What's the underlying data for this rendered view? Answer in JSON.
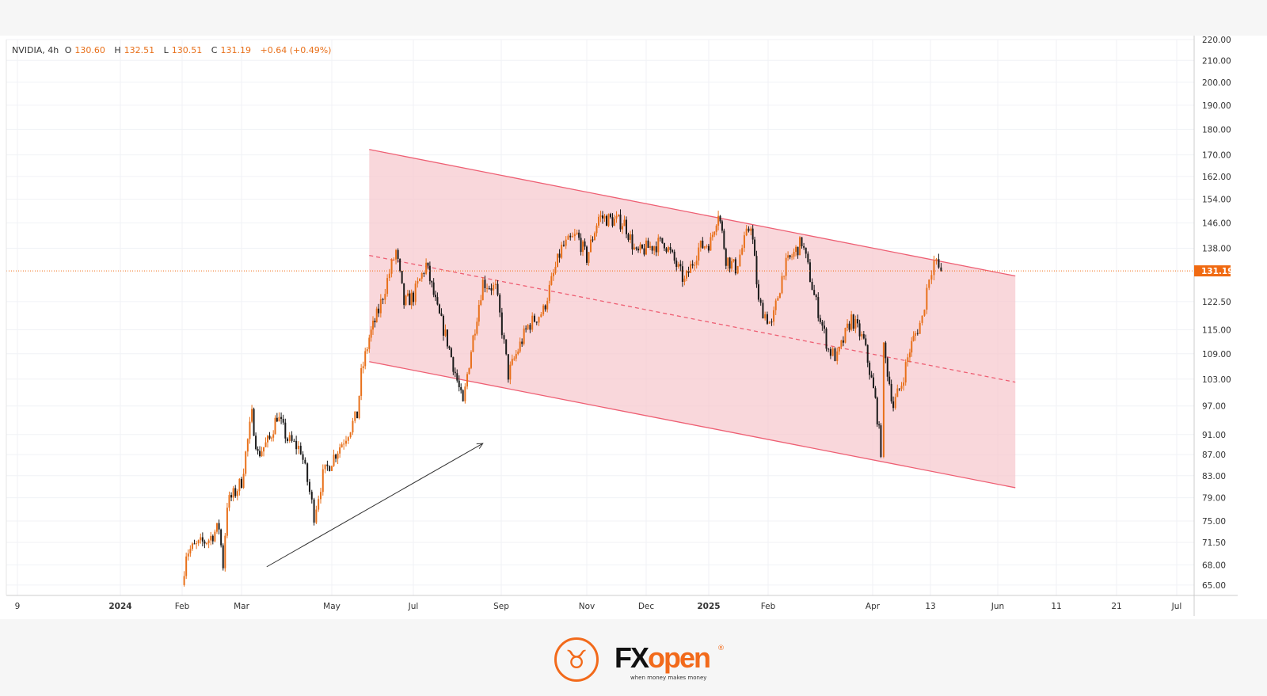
{
  "legend": {
    "symbol": "NVIDIA, 4h",
    "open_label": "O",
    "open": "130.60",
    "high_label": "H",
    "high": "132.51",
    "low_label": "L",
    "low": "130.51",
    "close_label": "C",
    "close": "131.19",
    "change": "+0.64 (+0.49%)"
  },
  "logo": {
    "brand_black": "FX",
    "brand_orange": "open",
    "tagline": "when money makes money",
    "reg": "®"
  },
  "colors": {
    "up": "#e8701a",
    "down": "#1a1a1a",
    "channel_line": "#ee5f73",
    "channel_fill": "#f7c6cc",
    "last_price": "#f06a12",
    "grid": "#f0f2f6",
    "arrow": "#333333"
  },
  "chart_data": {
    "type": "candlestick",
    "title": "NVIDIA, 4h",
    "y_scale": "log",
    "ylim": [
      65,
      220
    ],
    "grid": true,
    "y_ticks": [
      "220.00",
      "210.00",
      "200.00",
      "190.00",
      "180.00",
      "170.00",
      "162.00",
      "154.00",
      "146.00",
      "138.00",
      "122.50",
      "115.00",
      "109.00",
      "103.00",
      "97.00",
      "91.00",
      "87.00",
      "83.00",
      "79.00",
      "75.00",
      "71.50",
      "68.00",
      "65.00"
    ],
    "last_price": "131.19",
    "x_ticks": [
      {
        "label": "9",
        "date": "2023-12-09"
      },
      {
        "label": "2024",
        "date": "2024-01-01"
      },
      {
        "label": "Feb",
        "date": "2024-02-01"
      },
      {
        "label": "Mar",
        "date": "2024-03-01"
      },
      {
        "label": "May",
        "date": "2024-05-01"
      },
      {
        "label": "Jul",
        "date": "2024-07-01"
      },
      {
        "label": "Sep",
        "date": "2024-09-01"
      },
      {
        "label": "Nov",
        "date": "2024-11-01"
      },
      {
        "label": "Dec",
        "date": "2024-12-01"
      },
      {
        "label": "2025",
        "date": "2025-01-01"
      },
      {
        "label": "Feb",
        "date": "2025-02-01"
      },
      {
        "label": "Apr",
        "date": "2025-04-01"
      },
      {
        "label": "13",
        "date": "2025-05-13"
      },
      {
        "label": "Jun",
        "date": "2025-06-01"
      },
      {
        "label": "11",
        "date": "2025-06-11"
      },
      {
        "label": "21",
        "date": "2025-06-21"
      },
      {
        "label": "Jul",
        "date": "2025-07-01"
      }
    ],
    "price_path": [
      [
        "2024-02-01",
        65
      ],
      [
        "2024-02-03",
        70
      ],
      [
        "2024-02-14",
        72
      ],
      [
        "2024-02-19",
        74
      ],
      [
        "2024-02-21",
        68
      ],
      [
        "2024-02-23",
        78
      ],
      [
        "2024-02-27",
        80
      ],
      [
        "2024-03-01",
        82
      ],
      [
        "2024-03-08",
        95
      ],
      [
        "2024-03-12",
        87
      ],
      [
        "2024-03-20",
        90
      ],
      [
        "2024-03-25",
        95
      ],
      [
        "2024-04-01",
        90
      ],
      [
        "2024-04-10",
        88
      ],
      [
        "2024-04-19",
        76
      ],
      [
        "2024-04-25",
        83
      ],
      [
        "2024-05-01",
        86
      ],
      [
        "2024-05-10",
        90
      ],
      [
        "2024-05-20",
        95
      ],
      [
        "2024-05-23",
        104
      ],
      [
        "2024-05-29",
        113
      ],
      [
        "2024-06-05",
        120
      ],
      [
        "2024-06-18",
        137
      ],
      [
        "2024-06-24",
        122
      ],
      [
        "2024-07-01",
        124
      ],
      [
        "2024-07-10",
        133
      ],
      [
        "2024-07-18",
        120
      ],
      [
        "2024-07-25",
        112
      ],
      [
        "2024-08-05",
        97
      ],
      [
        "2024-08-08",
        104
      ],
      [
        "2024-08-19",
        128
      ],
      [
        "2024-08-28",
        126
      ],
      [
        "2024-09-06",
        104
      ],
      [
        "2024-09-20",
        116
      ],
      [
        "2024-10-01",
        120
      ],
      [
        "2024-10-14",
        138
      ],
      [
        "2024-10-25",
        142
      ],
      [
        "2024-11-01",
        135
      ],
      [
        "2024-11-07",
        148
      ],
      [
        "2024-11-20",
        146
      ],
      [
        "2024-11-26",
        136
      ],
      [
        "2024-12-01",
        138
      ],
      [
        "2024-12-10",
        140
      ],
      [
        "2024-12-20",
        128
      ],
      [
        "2024-12-27",
        138
      ],
      [
        "2025-01-02",
        140
      ],
      [
        "2025-01-06",
        150
      ],
      [
        "2025-01-10",
        135
      ],
      [
        "2025-01-15",
        132
      ],
      [
        "2025-01-23",
        146
      ],
      [
        "2025-01-27",
        122
      ],
      [
        "2025-02-03",
        116
      ],
      [
        "2025-02-10",
        132
      ],
      [
        "2025-02-20",
        140
      ],
      [
        "2025-02-27",
        124
      ],
      [
        "2025-03-07",
        110
      ],
      [
        "2025-03-12",
        108
      ],
      [
        "2025-03-20",
        118
      ],
      [
        "2025-03-27",
        112
      ],
      [
        "2025-04-03",
        98
      ],
      [
        "2025-04-07",
        88
      ],
      [
        "2025-04-09",
        110
      ],
      [
        "2025-04-16",
        97
      ],
      [
        "2025-04-22",
        102
      ],
      [
        "2025-04-28",
        110
      ],
      [
        "2025-05-02",
        114
      ],
      [
        "2025-05-07",
        118
      ],
      [
        "2025-05-12",
        130
      ],
      [
        "2025-05-14",
        134
      ],
      [
        "2025-05-16",
        131.19
      ]
    ],
    "channel": {
      "upper": [
        [
          "2024-05-29",
          172.1
        ],
        [
          "2025-06-04",
          129.7
        ]
      ],
      "middle": [
        [
          "2024-05-29",
          135.8
        ],
        [
          "2025-06-04",
          102.3
        ]
      ],
      "lower": [
        [
          "2024-05-29",
          107.1
        ],
        [
          "2025-06-04",
          80.8
        ]
      ]
    },
    "arrow": [
      [
        "2024-03-18",
        67.7
      ],
      [
        "2024-08-19",
        89.2
      ]
    ]
  }
}
